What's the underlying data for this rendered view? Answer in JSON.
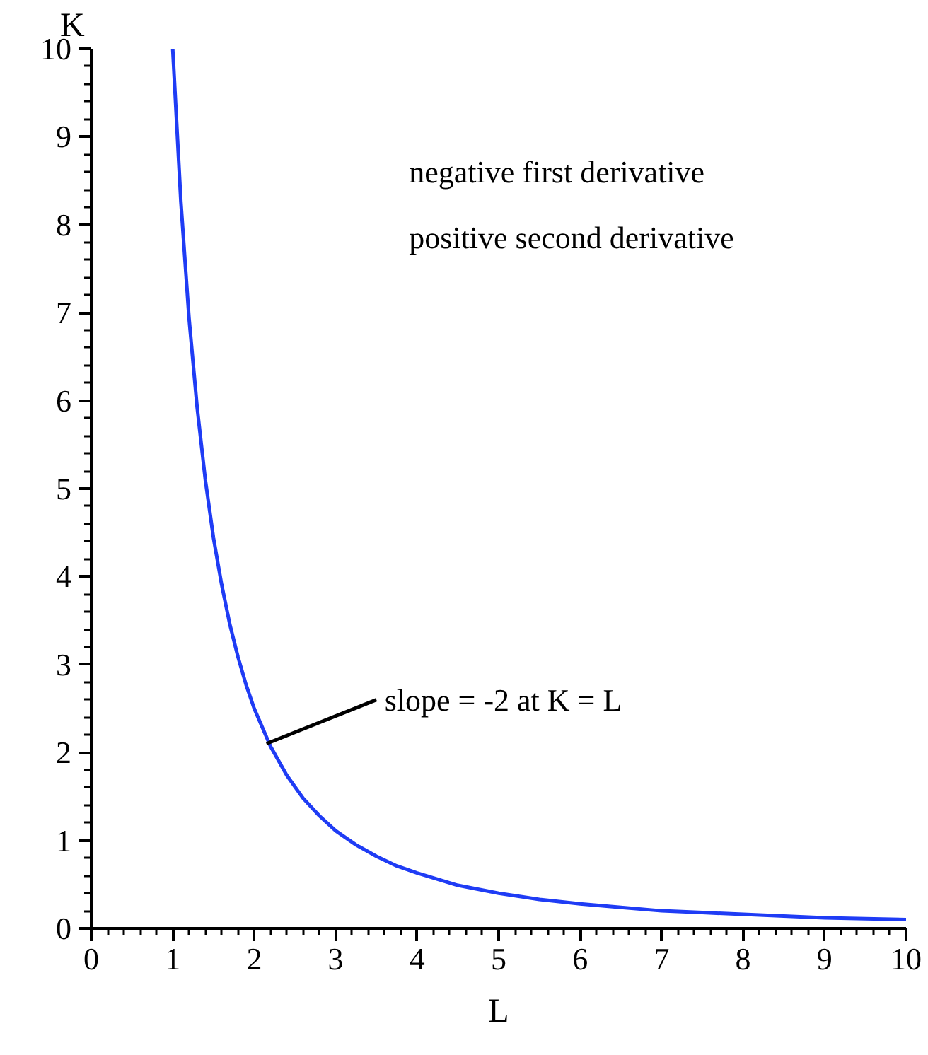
{
  "chart_data": {
    "type": "line",
    "xlabel": "L",
    "ylabel": "K",
    "x": [
      1,
      1.1,
      1.2,
      1.3,
      1.4,
      1.5,
      1.6,
      1.7,
      1.8,
      1.9,
      2,
      2.2,
      2.4,
      2.6,
      2.8,
      3,
      3.25,
      3.5,
      3.75,
      4,
      4.5,
      5,
      5.5,
      6,
      6.5,
      7,
      7.5,
      8,
      8.5,
      9,
      9.5,
      10
    ],
    "series": [
      {
        "color": "#1f3cf5",
        "values": [
          10,
          8.26,
          6.94,
          5.92,
          5.1,
          4.44,
          3.91,
          3.46,
          3.09,
          2.77,
          2.5,
          2.07,
          1.74,
          1.48,
          1.28,
          1.11,
          0.95,
          0.82,
          0.71,
          0.63,
          0.49,
          0.4,
          0.33,
          0.28,
          0.24,
          0.2,
          0.18,
          0.16,
          0.14,
          0.12,
          0.11,
          0.1
        ]
      }
    ],
    "xlim": [
      0,
      10
    ],
    "ylim": [
      0,
      10
    ],
    "xticks": [
      0,
      1,
      2,
      3,
      4,
      5,
      6,
      7,
      8,
      9,
      10
    ],
    "yticks": [
      0,
      1,
      2,
      3,
      4,
      5,
      6,
      7,
      8,
      9,
      10
    ],
    "grid": false,
    "marker": "none",
    "line_style": "solid",
    "annotations": [
      "negative first derivative",
      "positive second derivative",
      {
        "text": "slope = -2 at K = L",
        "x": 2.15,
        "y": 2.1
      }
    ]
  }
}
